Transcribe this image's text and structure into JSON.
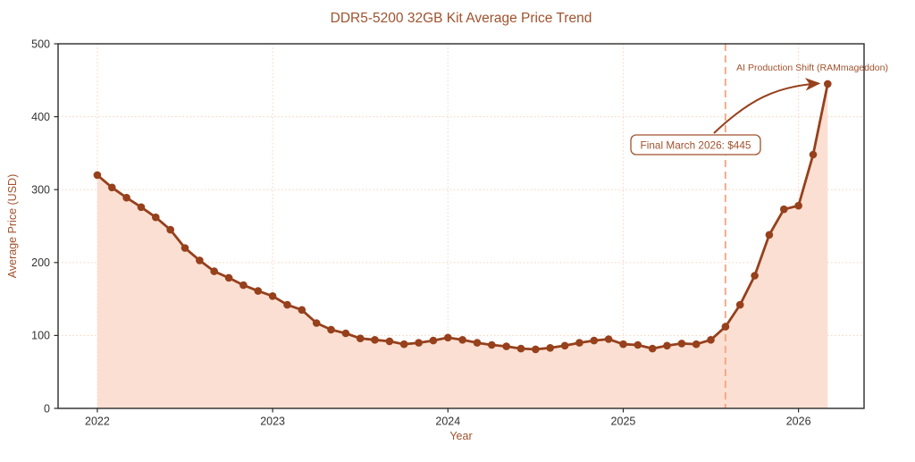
{
  "chart_data": {
    "type": "area",
    "title": "DDR5-5200 32GB Kit Average Price Trend",
    "xlabel": "Year",
    "ylabel": "Average Price (USD)",
    "legend": "none",
    "grid": "dotted",
    "xlim": [
      2021.776,
      2026.374
    ],
    "ylim": [
      0,
      500
    ],
    "x_ticks": [
      2022,
      2023,
      2024,
      2025,
      2026
    ],
    "y_ticks": [
      0,
      100,
      200,
      300,
      400,
      500
    ],
    "series_name": "DDR5-5200 32GB kit average price (USD)",
    "dates": [
      "2022-01",
      "2022-02",
      "2022-03",
      "2022-04",
      "2022-05",
      "2022-06",
      "2022-07",
      "2022-08",
      "2022-09",
      "2022-10",
      "2022-11",
      "2022-12",
      "2023-01",
      "2023-02",
      "2023-03",
      "2023-04",
      "2023-05",
      "2023-06",
      "2023-07",
      "2023-08",
      "2023-09",
      "2023-10",
      "2023-11",
      "2023-12",
      "2024-01",
      "2024-02",
      "2024-03",
      "2024-04",
      "2024-05",
      "2024-06",
      "2024-07",
      "2024-08",
      "2024-09",
      "2024-10",
      "2024-11",
      "2024-12",
      "2025-01",
      "2025-02",
      "2025-03",
      "2025-04",
      "2025-05",
      "2025-06",
      "2025-07",
      "2025-08",
      "2025-09",
      "2025-10",
      "2025-11",
      "2025-12",
      "2026-01",
      "2026-02",
      "2026-03"
    ],
    "values": [
      320,
      303,
      289,
      276,
      262,
      245,
      220,
      203,
      188,
      179,
      169,
      161,
      154,
      142,
      135,
      117,
      108,
      103,
      96,
      94,
      92,
      88,
      90,
      93,
      97,
      94,
      90,
      87,
      85,
      82,
      81,
      83,
      86,
      90,
      93,
      95,
      88,
      87,
      82,
      86,
      89,
      88,
      94,
      112,
      142,
      182,
      238,
      273,
      278,
      348,
      445
    ],
    "annotations": {
      "event_label": "AI Production Shift (RAMmageddon)",
      "event_x": 2025.583,
      "callout_text": "Final March 2026: $445",
      "callout_target_date": "2026-03",
      "callout_target_value": 445
    },
    "colors": {
      "line": "#96401c",
      "fill": "#fbdfd2",
      "event_line": "#f5a684",
      "grid": "#f8d7c0",
      "axis": "#2b2b2b",
      "tick_label": "#333333",
      "accent_text": "#a0522d",
      "callout_bg": "#ffffff"
    }
  }
}
